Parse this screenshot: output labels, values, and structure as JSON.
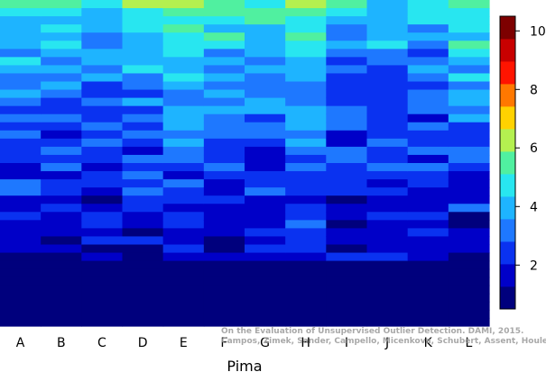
{
  "chart_data": {
    "type": "heatmap",
    "xlabel": "Pima",
    "categories": [
      "A",
      "B",
      "C",
      "D",
      "E",
      "F",
      "G",
      "H",
      "I",
      "J",
      "K",
      "L"
    ],
    "colorbar": {
      "ticks": [
        2,
        4,
        6,
        8,
        10
      ],
      "range": [
        0.5,
        10.5
      ],
      "colors": [
        "#00007d",
        "#0000c8",
        "#0a32f0",
        "#1e78ff",
        "#1eb4ff",
        "#28e6f0",
        "#50f0a0",
        "#b4f050",
        "#ffd200",
        "#ff7800",
        "#ff1400",
        "#c80000",
        "#7d0000"
      ]
    },
    "rows": 40,
    "columns_profile": [
      {
        "name": "A",
        "top": 5.5,
        "bottom": 1.0
      },
      {
        "name": "B",
        "top": 5.5,
        "bottom": 1.0
      },
      {
        "name": "C",
        "top": 5.0,
        "bottom": 1.0
      },
      {
        "name": "D",
        "top": 6.0,
        "bottom": 1.0
      },
      {
        "name": "E",
        "top": 6.0,
        "bottom": 1.0
      },
      {
        "name": "F",
        "top": 6.0,
        "bottom": 1.0
      },
      {
        "name": "G",
        "top": 5.5,
        "bottom": 1.0
      },
      {
        "name": "H",
        "top": 6.0,
        "bottom": 1.5
      },
      {
        "name": "I",
        "top": 5.0,
        "bottom": 1.0
      },
      {
        "name": "J",
        "top": 5.0,
        "bottom": 1.0
      },
      {
        "name": "K",
        "top": 5.0,
        "bottom": 1.0
      },
      {
        "name": "L",
        "top": 6.0,
        "bottom": 1.0
      }
    ]
  },
  "watermark": {
    "line1": "On the Evaluation of Unsupervised Outlier Detection. DAMI, 2015.",
    "line2": "Campos, Zimek, Sander, Campello, Micenkova, Schubert, Assent, Houle"
  }
}
